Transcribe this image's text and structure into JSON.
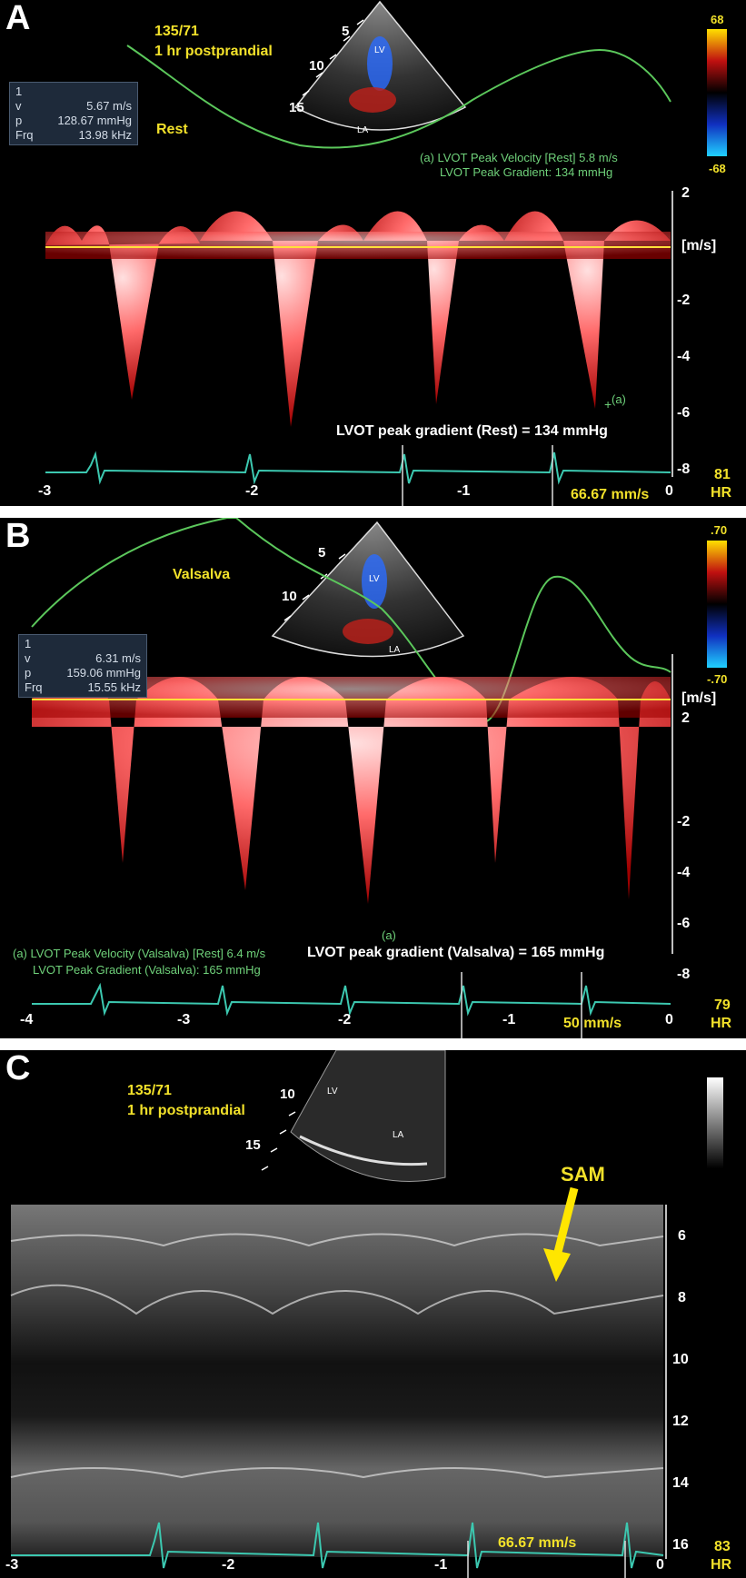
{
  "panelA": {
    "label": "A",
    "bp": "135/71",
    "state": "1 hr postprandial",
    "condition": "Rest",
    "info": [
      {
        "key": "v",
        "value": "5.67 m/s"
      },
      {
        "key": "p",
        "value": "128.67 mmHg"
      },
      {
        "key": "Frq",
        "value": "13.98 kHz"
      }
    ],
    "info_index": "1",
    "depth_ticks": [
      "5",
      "10",
      "15"
    ],
    "lv": "LV",
    "la": "LA",
    "color_scale": {
      "top": "68",
      "bottom": "-68"
    },
    "measure_line1": "(a)  LVOT Peak Velocity    [Rest]  5.8 m/s",
    "measure_line2": "LVOT Peak Gradient:             134 mmHg",
    "unit": "[m/s]",
    "y_ticks": [
      "2",
      "-2",
      "-4",
      "-6",
      "-8"
    ],
    "x_ticks": [
      "-3",
      "-2",
      "-1",
      "0"
    ],
    "caption": "LVOT peak gradient (Rest) = 134 mmHg",
    "sweep": "66.67 mm/s",
    "hr": "81",
    "hr_label": "HR",
    "marker": "(a)"
  },
  "panelB": {
    "label": "B",
    "condition": "Valsalva",
    "info": [
      {
        "key": "v",
        "value": "6.31 m/s"
      },
      {
        "key": "p",
        "value": "159.06 mmHg"
      },
      {
        "key": "Frq",
        "value": "15.55 kHz"
      }
    ],
    "info_index": "1",
    "depth_ticks": [
      "5",
      "10"
    ],
    "lv": "LV",
    "la": "LA",
    "color_scale": {
      "top": ".70",
      "bottom": "-.70"
    },
    "measure_line1": "(a)  LVOT Peak Velocity (Valsalva)    [Rest]  6.4 m/s",
    "measure_line2": "LVOT Peak Gradient (Valsalva):            165 mmHg",
    "unit": "[m/s]",
    "y_ticks": [
      "2",
      "-2",
      "-4",
      "-6",
      "-8"
    ],
    "x_ticks": [
      "-4",
      "-3",
      "-2",
      "-1",
      "0"
    ],
    "caption": "LVOT peak gradient (Valsalva) = 165 mmHg",
    "sweep": "50 mm/s",
    "hr": "79",
    "hr_label": "HR",
    "marker": "(a)"
  },
  "panelC": {
    "label": "C",
    "bp": "135/71",
    "state": "1 hr postprandial",
    "depth_ticks": [
      "10",
      "15"
    ],
    "lv": "LV",
    "la": "LA",
    "annotation": "SAM",
    "y_ticks": [
      "6",
      "8",
      "10",
      "12",
      "14",
      "16"
    ],
    "x_ticks": [
      "-3",
      "-2",
      "-1",
      "0"
    ],
    "sweep": "66.67 mm/s",
    "hr": "83",
    "hr_label": "HR"
  }
}
